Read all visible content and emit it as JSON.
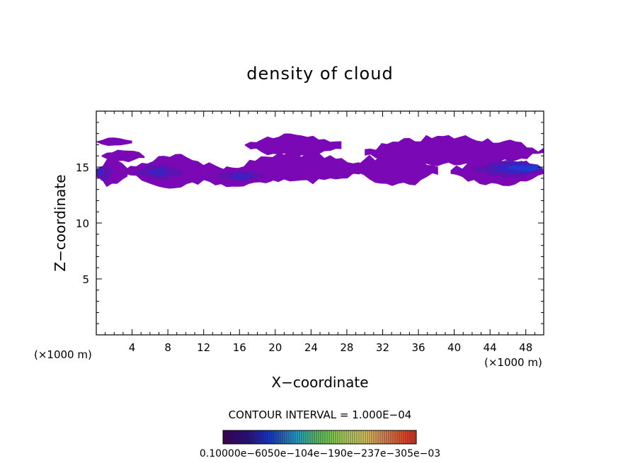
{
  "chart_data": {
    "type": "heatmap",
    "title": "density of cloud",
    "xlabel": "X−coordinate",
    "ylabel": "Z−coordinate",
    "x_unit_left": "(×1000 m)",
    "x_unit_right": "(×1000 m)",
    "xlim": [
      0,
      50
    ],
    "ylim": [
      0,
      20
    ],
    "x_ticks": [
      4,
      8,
      12,
      16,
      20,
      24,
      28,
      32,
      36,
      40,
      44,
      48
    ],
    "y_ticks": [
      5,
      10,
      15
    ],
    "contour_interval_text": "CONTOUR INTERVAL = 1.000E−04",
    "colorbar_labels_text": "0.10000e−6050e−104e−190e−237e−305e−03",
    "colorbar_min": 0.0001,
    "colorbar_max": 0.001,
    "colors": {
      "outer": "#7a08b4",
      "mid": "#5a14b0",
      "inner": "#3a24c2",
      "core": "#1e3cd4"
    },
    "cloud_regions": [
      {
        "level": 1,
        "x": [
          0,
          4.0
        ],
        "z": [
          16.9,
          17.6
        ]
      },
      {
        "level": 1,
        "x": [
          0.6,
          5.4
        ],
        "z": [
          15.5,
          16.5
        ]
      },
      {
        "level": 1,
        "x": [
          0,
          3.5
        ],
        "z": [
          13.3,
          15.8
        ]
      },
      {
        "level": 1,
        "x": [
          3.2,
          14.5
        ],
        "z": [
          13.3,
          15.9
        ]
      },
      {
        "level": 1,
        "x": [
          10.8,
          20.2
        ],
        "z": [
          13.3,
          14.9
        ]
      },
      {
        "level": 1,
        "x": [
          15.2,
          30.0
        ],
        "z": [
          13.6,
          16.1
        ]
      },
      {
        "level": 1,
        "x": [
          16.6,
          27.4
        ],
        "z": [
          16.0,
          18.0
        ]
      },
      {
        "level": 1,
        "x": [
          28.6,
          38.2
        ],
        "z": [
          13.3,
          16.3
        ]
      },
      {
        "level": 1,
        "x": [
          30.0,
          50.0
        ],
        "z": [
          15.2,
          17.7
        ]
      },
      {
        "level": 1,
        "x": [
          39.6,
          50.0
        ],
        "z": [
          13.3,
          15.8
        ]
      },
      {
        "level": 2,
        "x": [
          0,
          1.8
        ],
        "z": [
          13.8,
          15.3
        ]
      },
      {
        "level": 2,
        "x": [
          4.3,
          9.6
        ],
        "z": [
          13.9,
          15.2
        ]
      },
      {
        "level": 2,
        "x": [
          13.7,
          18.6
        ],
        "z": [
          13.7,
          14.7
        ]
      },
      {
        "level": 2,
        "x": [
          42.0,
          50.0
        ],
        "z": [
          14.1,
          15.6
        ]
      },
      {
        "level": 3,
        "x": [
          0,
          0.8
        ],
        "z": [
          14.2,
          15.0
        ]
      },
      {
        "level": 3,
        "x": [
          5.8,
          8.0
        ],
        "z": [
          14.2,
          14.9
        ]
      },
      {
        "level": 3,
        "x": [
          15.0,
          17.4
        ],
        "z": [
          13.9,
          14.5
        ]
      },
      {
        "level": 3,
        "x": [
          44.0,
          50.0
        ],
        "z": [
          14.4,
          15.4
        ]
      },
      {
        "level": 4,
        "x": [
          46.0,
          49.6
        ],
        "z": [
          14.6,
          15.2
        ]
      }
    ]
  }
}
